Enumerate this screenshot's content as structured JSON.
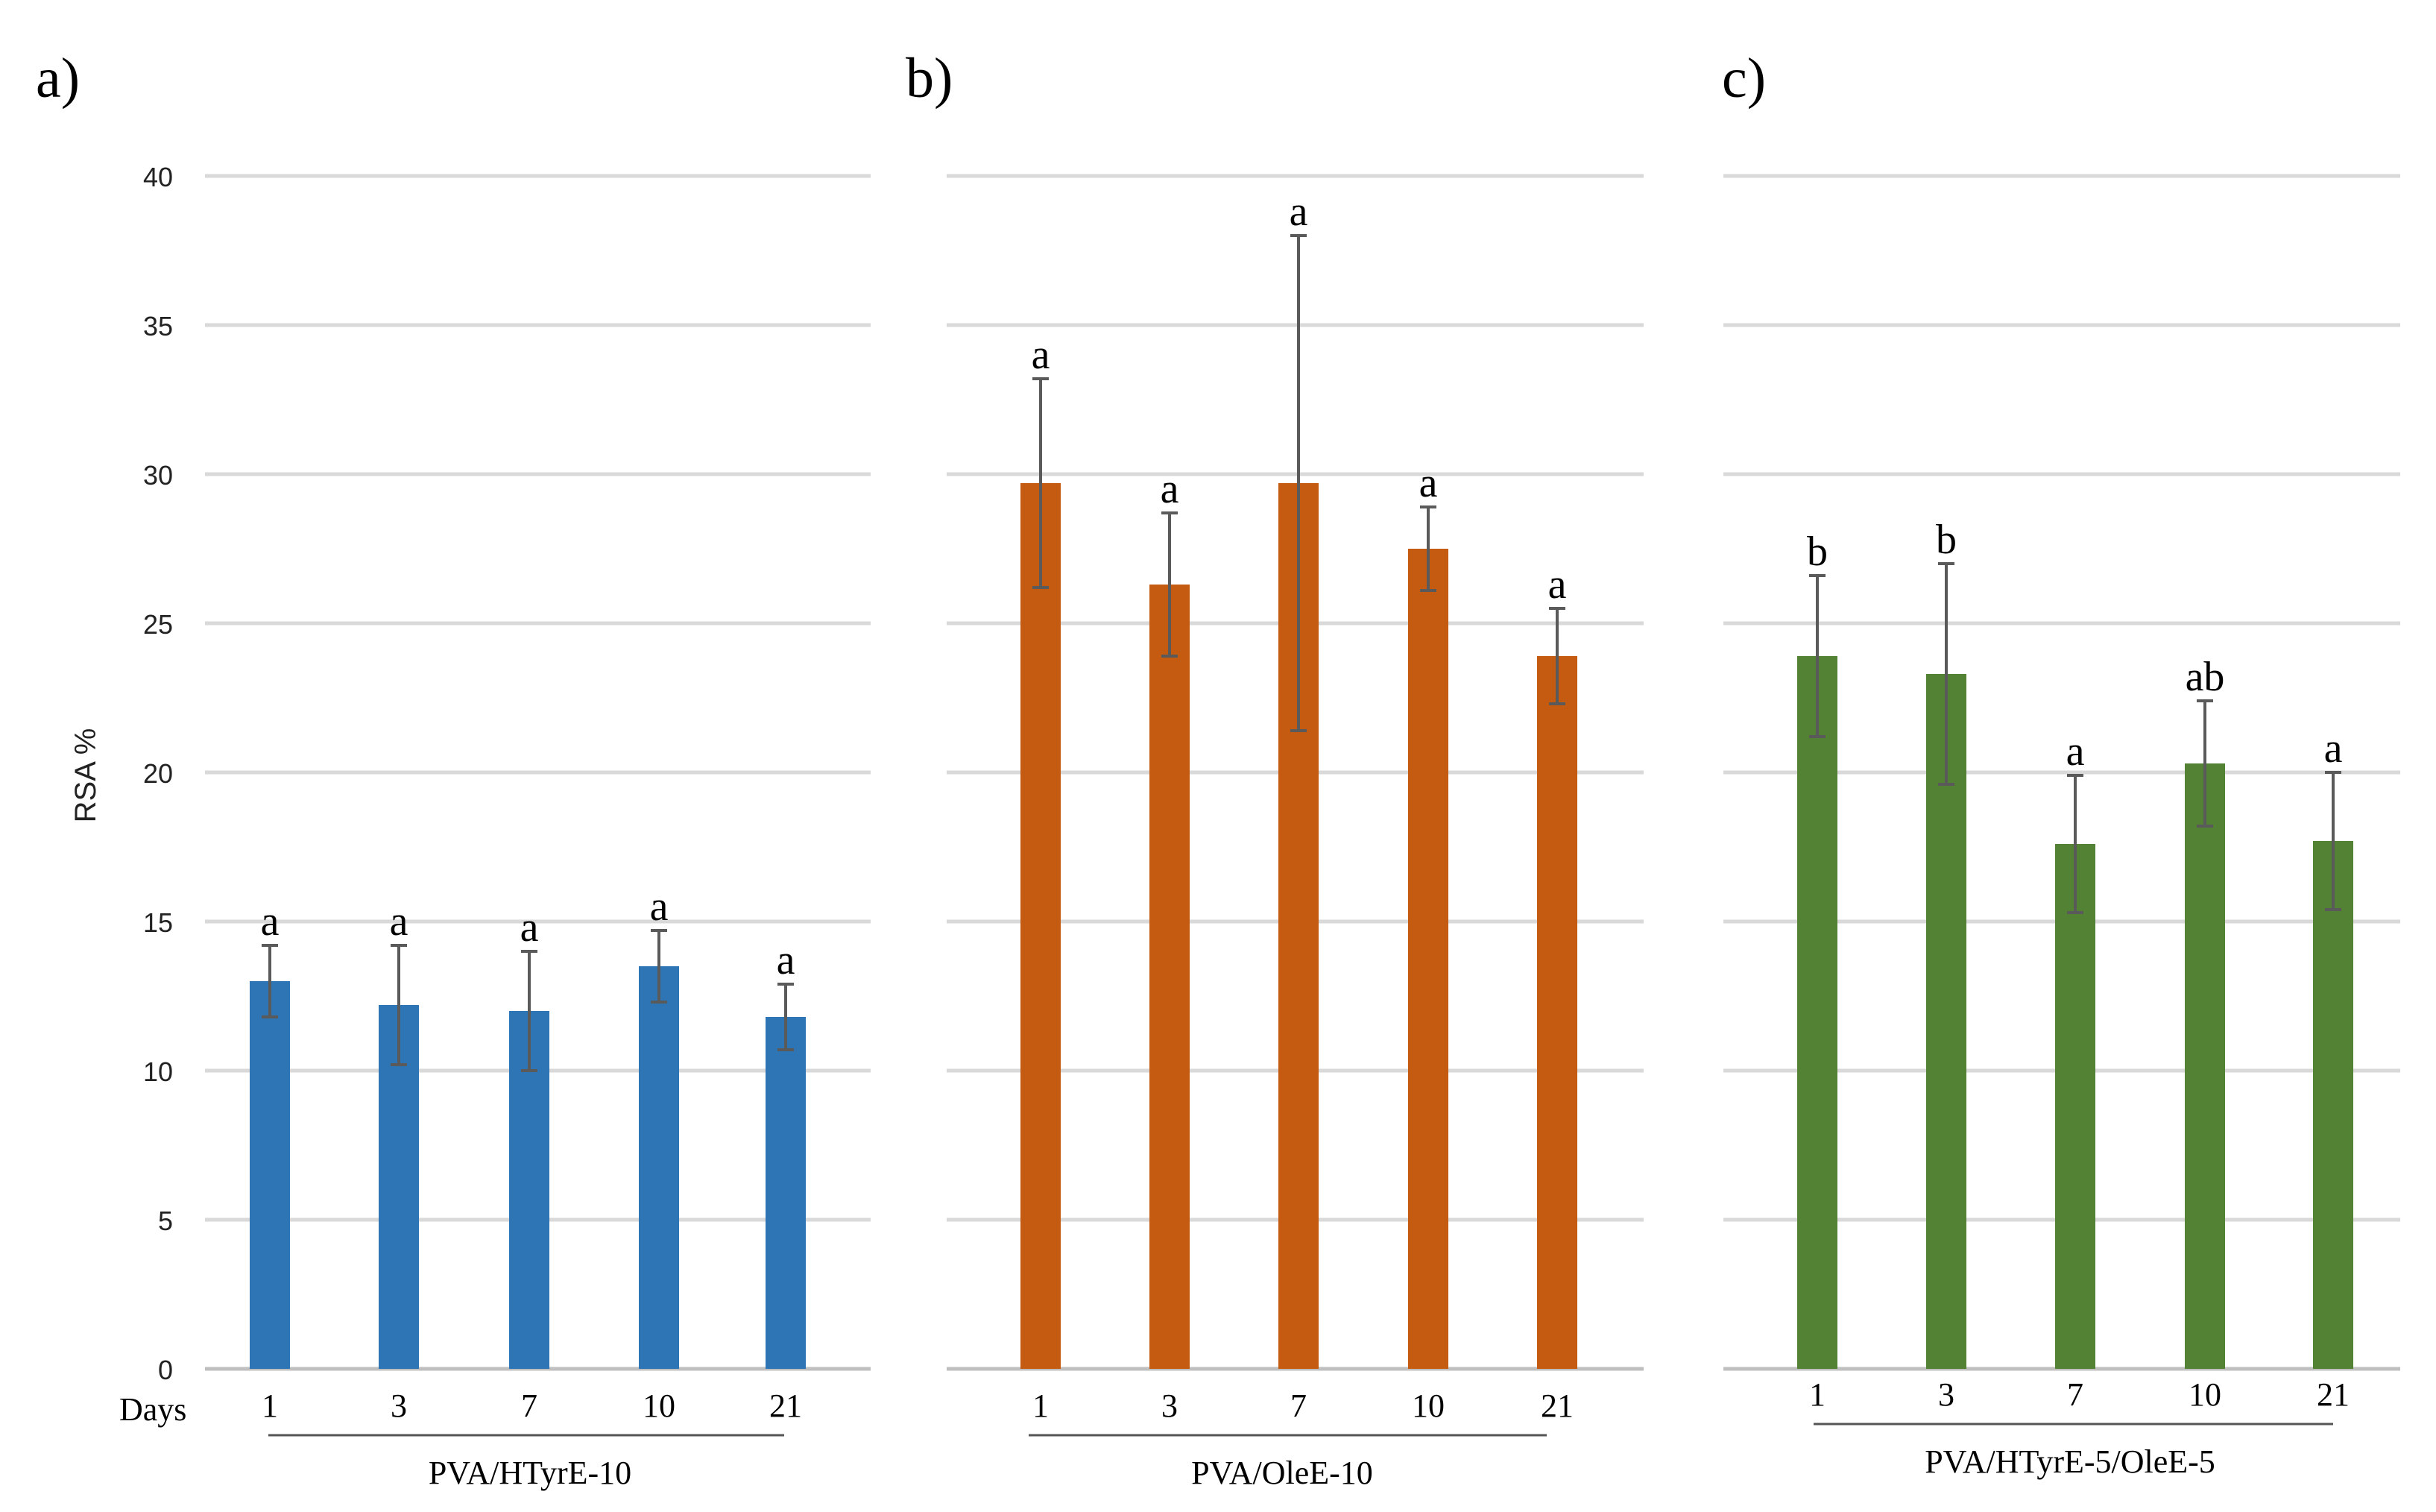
{
  "chart_data": [
    {
      "type": "bar",
      "panel_label": "a)",
      "color": "#2e75b6",
      "categories": [
        "1",
        "3",
        "7",
        "10",
        "21"
      ],
      "values": [
        13.0,
        12.2,
        12.0,
        13.5,
        11.8
      ],
      "errors": [
        1.2,
        2.0,
        2.0,
        1.2,
        1.1
      ],
      "significance": [
        "a",
        "a",
        "a",
        "a",
        "a"
      ],
      "xlabel": "PVA/HTyrE-10",
      "x_title": "Days",
      "ylabel": "RSA %",
      "ylim": [
        0,
        40
      ],
      "yticks": [
        "0",
        "5",
        "10",
        "15",
        "20",
        "25",
        "30",
        "35",
        "40"
      ],
      "grid": true
    },
    {
      "type": "bar",
      "panel_label": "b)",
      "color": "#c55a11",
      "categories": [
        "1",
        "3",
        "7",
        "10",
        "21"
      ],
      "values": [
        29.7,
        26.3,
        29.7,
        27.5,
        23.9
      ],
      "errors": [
        3.5,
        2.4,
        8.3,
        1.4,
        1.6
      ],
      "significance": [
        "a",
        "a",
        "a",
        "a",
        "a"
      ],
      "xlabel": "PVA/OleE-10",
      "ylim": [
        0,
        40
      ],
      "grid": true
    },
    {
      "type": "bar",
      "panel_label": "c)",
      "color": "#548235",
      "categories": [
        "1",
        "3",
        "7",
        "10",
        "21"
      ],
      "values": [
        23.9,
        23.3,
        17.6,
        20.3,
        17.7
      ],
      "errors": [
        2.7,
        3.7,
        2.3,
        2.1,
        2.3
      ],
      "significance": [
        "b",
        "b",
        "a",
        "ab",
        "a"
      ],
      "xlabel": "PVA/HTyrE-5/OleE-5",
      "ylim": [
        0,
        40
      ],
      "grid": true
    }
  ]
}
